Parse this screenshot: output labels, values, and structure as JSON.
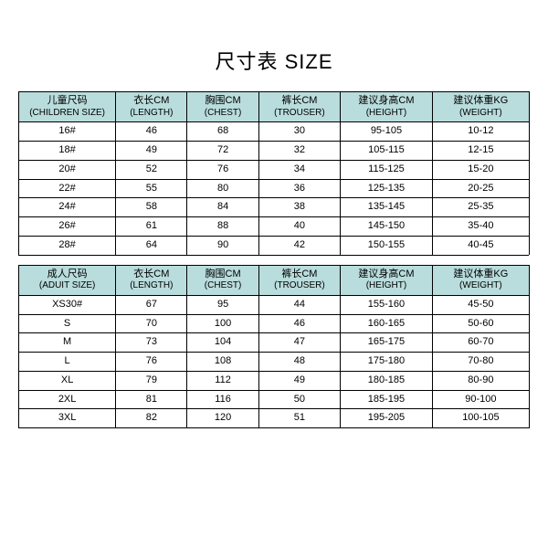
{
  "title": "尺寸表 SIZE",
  "header_bg": "#b9dcdc",
  "columns": [
    {
      "cn": "儿童尺码",
      "en": "(CHILDREN SIZE)"
    },
    {
      "cn": "衣长CM",
      "en": "(LENGTH)"
    },
    {
      "cn": "胸围CM",
      "en": "(CHEST)"
    },
    {
      "cn": "裤长CM",
      "en": "(TROUSER)"
    },
    {
      "cn": "建议身高CM",
      "en": "(HEIGHT)"
    },
    {
      "cn": "建议体重KG",
      "en": "(WEIGHT)"
    }
  ],
  "children_rows": [
    [
      "16#",
      "46",
      "68",
      "30",
      "95-105",
      "10-12"
    ],
    [
      "18#",
      "49",
      "72",
      "32",
      "105-115",
      "12-15"
    ],
    [
      "20#",
      "52",
      "76",
      "34",
      "115-125",
      "15-20"
    ],
    [
      "22#",
      "55",
      "80",
      "36",
      "125-135",
      "20-25"
    ],
    [
      "24#",
      "58",
      "84",
      "38",
      "135-145",
      "25-35"
    ],
    [
      "26#",
      "61",
      "88",
      "40",
      "145-150",
      "35-40"
    ],
    [
      "28#",
      "64",
      "90",
      "42",
      "150-155",
      "40-45"
    ]
  ],
  "adult_columns": [
    {
      "cn": "成人尺码",
      "en": "(ADUIT SIZE)"
    },
    {
      "cn": "衣长CM",
      "en": "(LENGTH)"
    },
    {
      "cn": "胸围CM",
      "en": "(CHEST)"
    },
    {
      "cn": "裤长CM",
      "en": "(TROUSER)"
    },
    {
      "cn": "建议身高CM",
      "en": "(HEIGHT)"
    },
    {
      "cn": "建议体重KG",
      "en": "(WEIGHT)"
    }
  ],
  "adult_rows": [
    [
      "XS30#",
      "67",
      "95",
      "44",
      "155-160",
      "45-50"
    ],
    [
      "S",
      "70",
      "100",
      "46",
      "160-165",
      "50-60"
    ],
    [
      "M",
      "73",
      "104",
      "47",
      "165-175",
      "60-70"
    ],
    [
      "L",
      "76",
      "108",
      "48",
      "175-180",
      "70-80"
    ],
    [
      "XL",
      "79",
      "112",
      "49",
      "180-185",
      "80-90"
    ],
    [
      "2XL",
      "81",
      "116",
      "50",
      "185-195",
      "90-100"
    ],
    [
      "3XL",
      "82",
      "120",
      "51",
      "195-205",
      "100-105"
    ]
  ]
}
